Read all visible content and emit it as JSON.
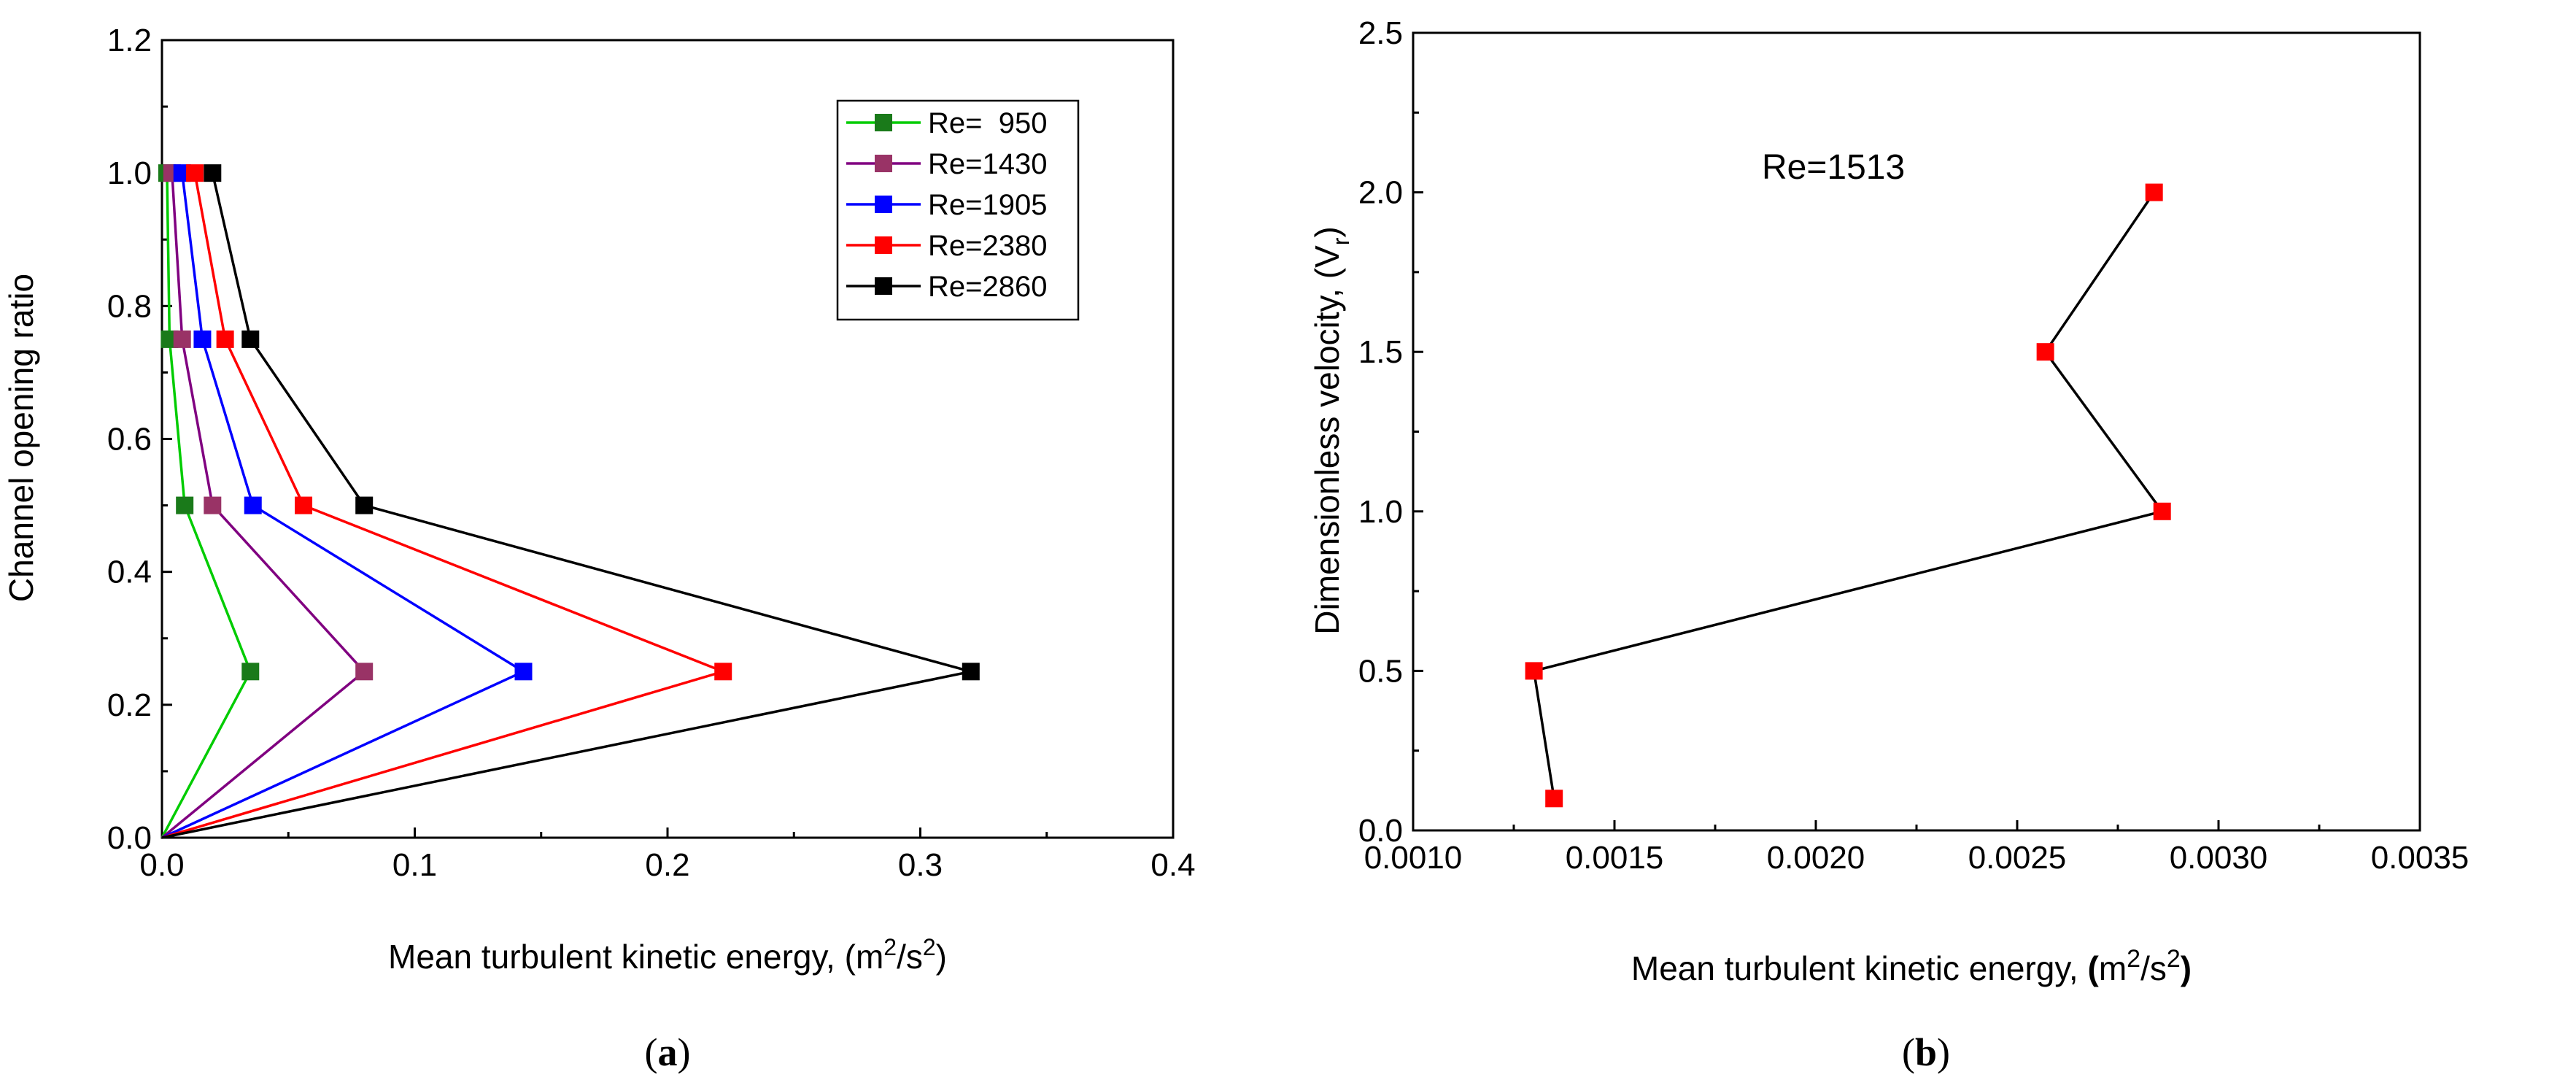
{
  "chart_data": [
    {
      "type": "line",
      "panel_label": "a",
      "xlabel_prefix": "Mean turbulent kinetic energy,",
      "xlabel_unit": "m",
      "xlabel_unit_tail": "s",
      "xlabel_exp": "2",
      "ylabel": "Channel opening ratio",
      "xlim": [
        0,
        0.4
      ],
      "ylim": [
        0,
        1.2
      ],
      "xticks": [
        "0.0",
        "0.1",
        "0.2",
        "0.3",
        "0.4"
      ],
      "yticks": [
        "0.0",
        "0.2",
        "0.4",
        "0.6",
        "0.8",
        "1.0",
        "1.2"
      ],
      "legend_position": "top-right",
      "series": [
        {
          "name": "Re=  950",
          "line_color": "#00cc00",
          "marker_color": "#1a7a1a",
          "points": [
            [
              0.0,
              0.0
            ],
            [
              0.035,
              0.25
            ],
            [
              0.009,
              0.5
            ],
            [
              0.003,
              0.75
            ],
            [
              0.002,
              1.0
            ]
          ]
        },
        {
          "name": "Re=1430",
          "line_color": "#800080",
          "marker_color": "#993366",
          "points": [
            [
              0.0,
              0.0
            ],
            [
              0.08,
              0.25
            ],
            [
              0.02,
              0.5
            ],
            [
              0.008,
              0.75
            ],
            [
              0.004,
              1.0
            ]
          ]
        },
        {
          "name": "Re=1905",
          "line_color": "#0000ff",
          "marker_color": "#0000ff",
          "points": [
            [
              0.0,
              0.0
            ],
            [
              0.143,
              0.25
            ],
            [
              0.036,
              0.5
            ],
            [
              0.016,
              0.75
            ],
            [
              0.008,
              1.0
            ]
          ]
        },
        {
          "name": "Re=2380",
          "line_color": "#ff0000",
          "marker_color": "#ff0000",
          "points": [
            [
              0.0,
              0.0
            ],
            [
              0.222,
              0.25
            ],
            [
              0.056,
              0.5
            ],
            [
              0.025,
              0.75
            ],
            [
              0.013,
              1.0
            ]
          ]
        },
        {
          "name": "Re=2860",
          "line_color": "#000000",
          "marker_color": "#000000",
          "points": [
            [
              0.0,
              0.0
            ],
            [
              0.32,
              0.25
            ],
            [
              0.08,
              0.5
            ],
            [
              0.035,
              0.75
            ],
            [
              0.02,
              1.0
            ]
          ]
        }
      ]
    },
    {
      "type": "line",
      "panel_label": "b",
      "xlabel_prefix": "Mean turbulent kinetic energy,",
      "xlabel_unit": "m",
      "xlabel_unit_tail": "s",
      "xlabel_exp": "2",
      "ylabel_prefix": "Dimensionless velocity,",
      "ylabel_var": "V",
      "ylabel_sub": "r",
      "annotation": "Re=1513",
      "xlim": [
        0.001,
        0.0035
      ],
      "ylim": [
        0,
        2.5
      ],
      "xticks": [
        "0.0010",
        "0.0015",
        "0.0020",
        "0.0025",
        "0.0030",
        "0.0035"
      ],
      "yticks": [
        "0.0",
        "0.5",
        "1.0",
        "1.5",
        "2.0",
        "2.5"
      ],
      "series": [
        {
          "name": "Re=1513",
          "line_color": "#000000",
          "marker_color": "#ff0000",
          "points": [
            [
              0.00135,
              0.1
            ],
            [
              0.0013,
              0.5
            ],
            [
              0.00286,
              1.0
            ],
            [
              0.00257,
              1.5
            ],
            [
              0.00284,
              2.0
            ]
          ]
        }
      ]
    }
  ]
}
